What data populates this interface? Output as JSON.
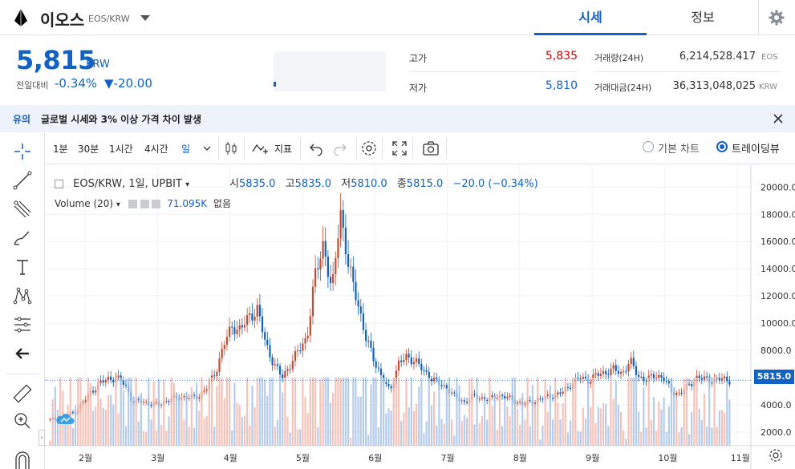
{
  "header": {
    "coin_name": "이오스",
    "pair": "EOS/KRW",
    "tabs": [
      {
        "label": "시세",
        "active": true
      },
      {
        "label": "정보",
        "active": false
      }
    ]
  },
  "summary": {
    "price": "5,815",
    "unit": "KRW",
    "prev_label": "전일대비",
    "change_rate": "-0.34%",
    "change_amount": "▼-20.00",
    "high_label": "고가",
    "high_value": "5,835",
    "low_label": "저가",
    "low_value": "5,810",
    "volume_label": "거래량(24H)",
    "volume_value": "6,214,528.417",
    "volume_unit": "EOS",
    "amount_label": "거래대금(24H)",
    "amount_value": "36,313,048,025",
    "amount_unit": "KRW",
    "up_color": "#d60000",
    "down_color": "#1261c4"
  },
  "notice": {
    "tag": "유의",
    "text": "글로벌 시세와 3% 이상 가격 차이 발생"
  },
  "toolbar": {
    "intervals": [
      "1분",
      "30분",
      "1시간",
      "4시간",
      "일"
    ],
    "indicator_label": "지표",
    "view_basic": "기본 차트",
    "view_trading": "트레이딩뷰"
  },
  "chart_legend": {
    "symbol": "EOS/KRW, 1일, UPBIT",
    "open_label": "시",
    "open_value": "5835.0",
    "high_label": "고",
    "high_value": "5835.0",
    "low_label": "저",
    "low_value": "5810.0",
    "close_label": "종",
    "close_value": "5815.0",
    "change": "−20.0 (−0.34%)",
    "volume_label": "Volume (20)",
    "volume_value": "71.095K",
    "volume_extra": "없음"
  },
  "chart_data": {
    "type": "candlestick",
    "y_ticks": [
      "20000.0",
      "18000.0",
      "16000.0",
      "14000.0",
      "12000.0",
      "10000.0",
      "8000.0",
      "6000.0",
      "4000.0",
      "2000.0"
    ],
    "ylim": [
      1000,
      20900
    ],
    "x_ticks": [
      "2월",
      "3월",
      "4월",
      "5월",
      "6월",
      "7월",
      "8월",
      "9월",
      "10월",
      "11월"
    ],
    "last_price_label": "5815.0",
    "close_series_approx": [
      2900,
      3000,
      3200,
      3500,
      4200,
      5000,
      5600,
      5900,
      6000,
      5500,
      4200,
      4300,
      4100,
      4000,
      4300,
      4500,
      4600,
      4500,
      4700,
      5300,
      6500,
      8500,
      9800,
      9500,
      10500,
      11000,
      8500,
      7000,
      6000,
      7000,
      8000,
      9000,
      13500,
      16000,
      12000,
      18500,
      14000,
      12000,
      9000,
      7500,
      6000,
      5000,
      7000,
      7500,
      7300,
      6500,
      6000,
      5500,
      5200,
      4500,
      4200,
      4600,
      4500,
      4400,
      4700,
      4600,
      4300,
      4100,
      4200,
      4400,
      4600,
      4700,
      5000,
      5600,
      6000,
      5800,
      6200,
      6400,
      6600,
      6300,
      7200,
      6100,
      5800,
      6200,
      6000,
      5000,
      4800,
      5400,
      6000,
      5900,
      5800,
      5900,
      5815
    ]
  }
}
